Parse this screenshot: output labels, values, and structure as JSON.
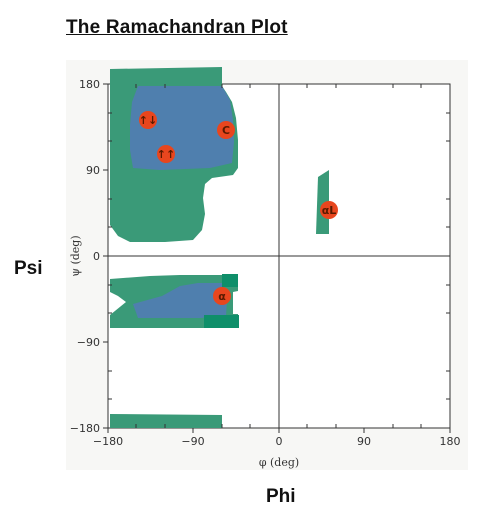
{
  "title": "The Ramachandran Plot",
  "psi_label": "Psi",
  "phi_label": "Phi",
  "x_axis_title": "φ (deg)",
  "y_axis_title": "ψ (deg)",
  "x_ticks": [
    "−180",
    "−90",
    "0",
    "90",
    "180"
  ],
  "y_ticks": [
    "180",
    "90",
    "0",
    "−90",
    "−180"
  ],
  "markers": [
    {
      "id": "antiparallel-beta",
      "label": "↑↓"
    },
    {
      "id": "parallel-beta",
      "label": "↑↑"
    },
    {
      "id": "collagen",
      "label": "C"
    },
    {
      "id": "alpha-right",
      "label": "α"
    },
    {
      "id": "alpha-left",
      "label": "αL"
    }
  ],
  "colors": {
    "allowed_region": "#3a9a78",
    "favorable_region": "#4f7fae",
    "marker_fill": "#e8461e",
    "background": "#ffffff",
    "axis": "#333333"
  }
}
